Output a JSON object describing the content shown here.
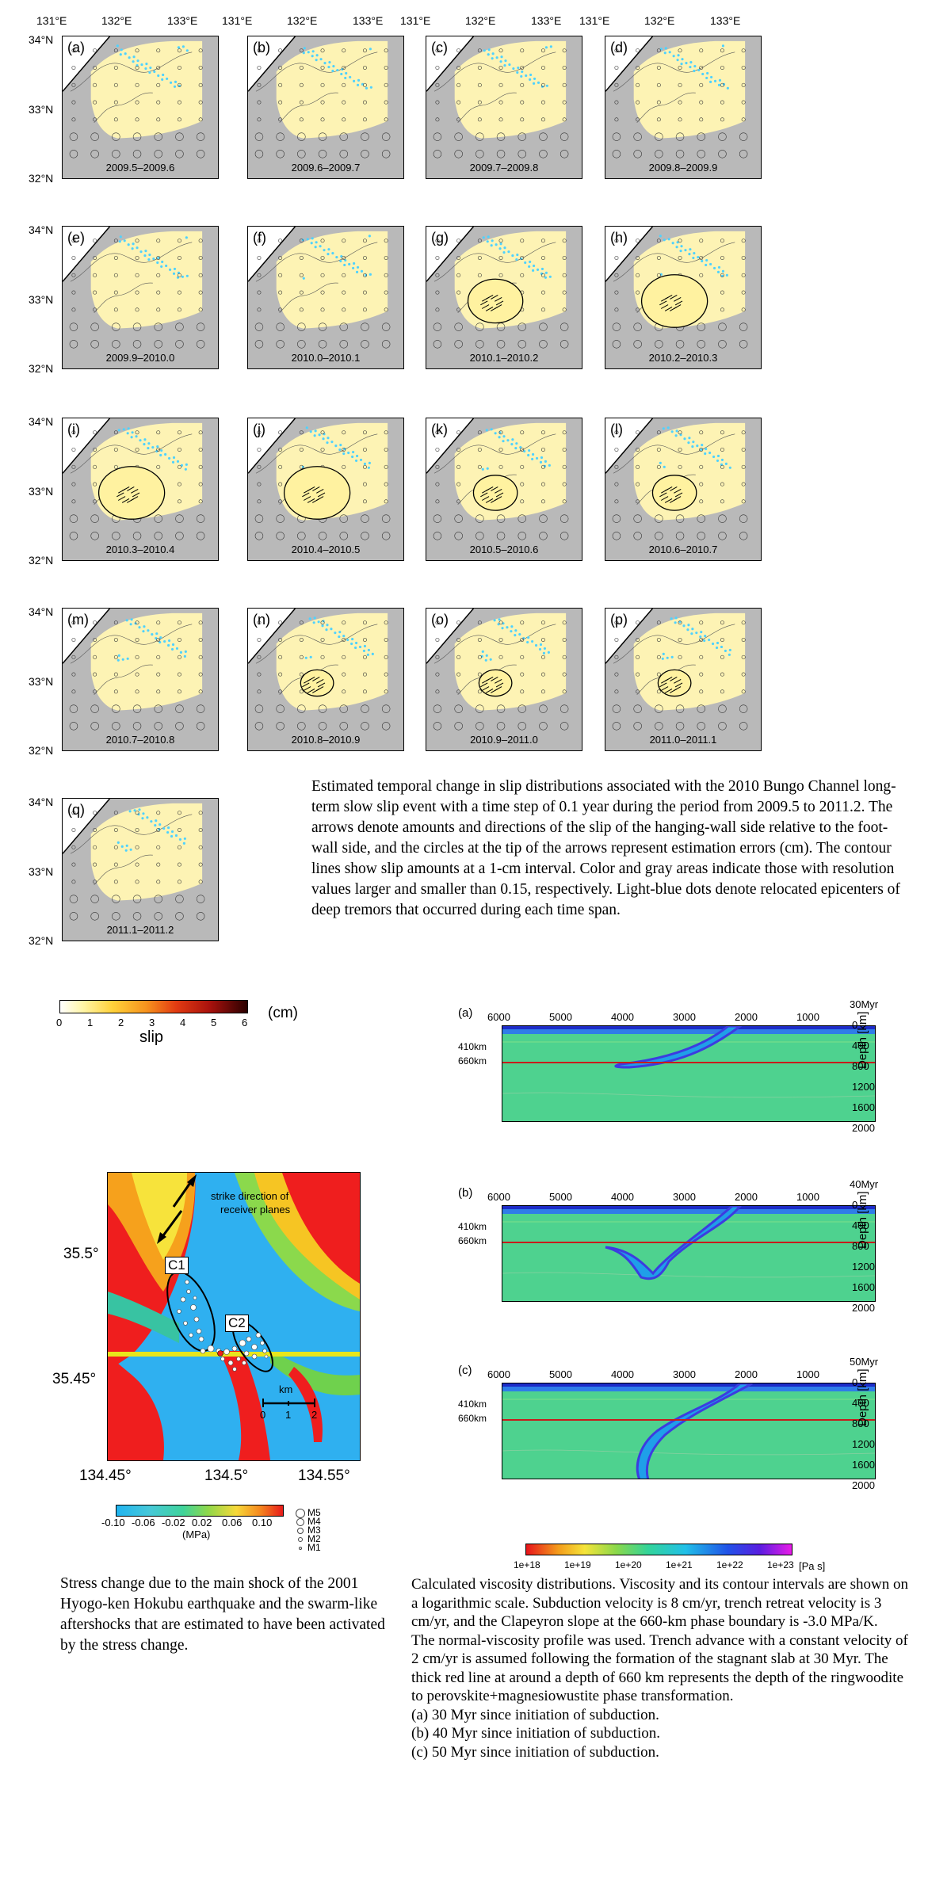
{
  "slip_figure": {
    "lon_ticks": [
      "131°E",
      "132°E",
      "133°E"
    ],
    "lat_ticks": [
      "34°N",
      "33°N",
      "32°N"
    ],
    "panels": [
      {
        "label": "(a)",
        "period": "2009.5–2009.6",
        "peak": 0
      },
      {
        "label": "(b)",
        "period": "2009.6–2009.7",
        "peak": 0
      },
      {
        "label": "(c)",
        "period": "2009.7–2009.8",
        "peak": 0
      },
      {
        "label": "(d)",
        "period": "2009.8–2009.9",
        "peak": 0
      },
      {
        "label": "(e)",
        "period": "2009.9–2010.0",
        "peak": 0
      },
      {
        "label": "(f)",
        "period": "2010.0–2010.1",
        "peak": 0
      },
      {
        "label": "(g)",
        "period": "2010.1–2010.2",
        "peak": 3
      },
      {
        "label": "(h)",
        "period": "2010.2–2010.3",
        "peak": 4
      },
      {
        "label": "(i)",
        "period": "2010.3–2010.4",
        "peak": 4
      },
      {
        "label": "(j)",
        "period": "2010.4–2010.5",
        "peak": 4
      },
      {
        "label": "(k)",
        "period": "2010.5–2010.6",
        "peak": 2
      },
      {
        "label": "(l)",
        "period": "2010.6–2010.7",
        "peak": 2
      },
      {
        "label": "(m)",
        "period": "2010.7–2010.8",
        "peak": 0
      },
      {
        "label": "(n)",
        "period": "2010.8–2010.9",
        "peak": 1
      },
      {
        "label": "(o)",
        "period": "2010.9–2011.0",
        "peak": 1
      },
      {
        "label": "(p)",
        "period": "2011.0–2011.1",
        "peak": 1
      },
      {
        "label": "(q)",
        "period": "2011.1–2011.2",
        "peak": 0
      }
    ],
    "colorbar": {
      "ticks": [
        "0",
        "1",
        "2",
        "3",
        "4",
        "5",
        "6"
      ],
      "unit": "(cm)",
      "label": "slip"
    },
    "caption": "Estimated temporal change in slip distributions associated with the 2010 Bungo Channel long-term slow slip event with a time step of 0.1 year during the period from 2009.5 to 2011.2. The arrows denote amounts and directions of the slip of the hanging-wall side relative to the foot-wall side, and the circles at the tip of the arrows represent estimation errors (cm). The contour lines show slip amounts at a 1-cm interval. Color and gray areas indicate those with resolution values larger and smaller than 0.15, respectively. Light-blue dots denote relocated epicenters of deep tremors that occurred during each time span."
  },
  "stress_figure": {
    "lat_ticks": [
      "35.5°",
      "35.45°"
    ],
    "lon_ticks": [
      "134.45°",
      "134.5°",
      "134.55°"
    ],
    "receiver_text_1": "strike direction of",
    "receiver_text_2": "receiver planes",
    "cluster_1": "C1",
    "cluster_2": "C2",
    "scale_unit": "km",
    "scale_ticks": [
      "0",
      "1",
      "2"
    ],
    "colorbar_ticks": [
      "-0.10",
      "-0.06",
      "-0.02",
      "0.02",
      "0.06",
      "0.10"
    ],
    "colorbar_unit": "(MPa)",
    "magnitudes": [
      "M5",
      "M4",
      "M3",
      "M2",
      "M1"
    ],
    "caption": "Stress change due to the main shock of the 2001 Hyogo-ken Hokubu earthquake and the swarm-like aftershocks that are estimated to have been activated by the stress change."
  },
  "viscosity_figure": {
    "panels": [
      {
        "label": "(a)",
        "time": "30Myr"
      },
      {
        "label": "(b)",
        "time": "40Myr"
      },
      {
        "label": "(c)",
        "time": "50Myr"
      }
    ],
    "x_ticks": [
      "6000",
      "5000",
      "4000",
      "3000",
      "2000",
      "1000"
    ],
    "depth_ticks": [
      "0",
      "400",
      "800",
      "1200",
      "1600",
      "2000"
    ],
    "depth_label": "Depth [km]",
    "boundary_410": "410km",
    "boundary_660": "660km",
    "colorbar_ticks": [
      "1e+18",
      "1e+19",
      "1e+20",
      "1e+21",
      "1e+22",
      "1e+23"
    ],
    "colorbar_unit": "[Pa s]",
    "caption_lines": [
      "Calculated viscosity distributions. Viscosity and its contour intervals are shown on a logarithmic scale. Subduction velocity is 8 cm/yr, trench retreat velocity is 3 cm/yr, and the Clapeyron slope at the 660-km phase boundary is -3.0 MPa/K.",
      "The normal-viscosity profile was used. Trench advance with a constant velocity of 2 cm/yr is assumed following the formation of the stagnant slab at 30 Myr. The thick red line at around a depth of 660 km represents the depth of the ringwoodite to perovskite+magnesiowustite phase transformation.",
      "(a) 30 Myr since initiation of subduction.",
      "(b) 40 Myr since initiation of subduction.",
      "(c) 50 Myr since initiation of subduction."
    ]
  }
}
